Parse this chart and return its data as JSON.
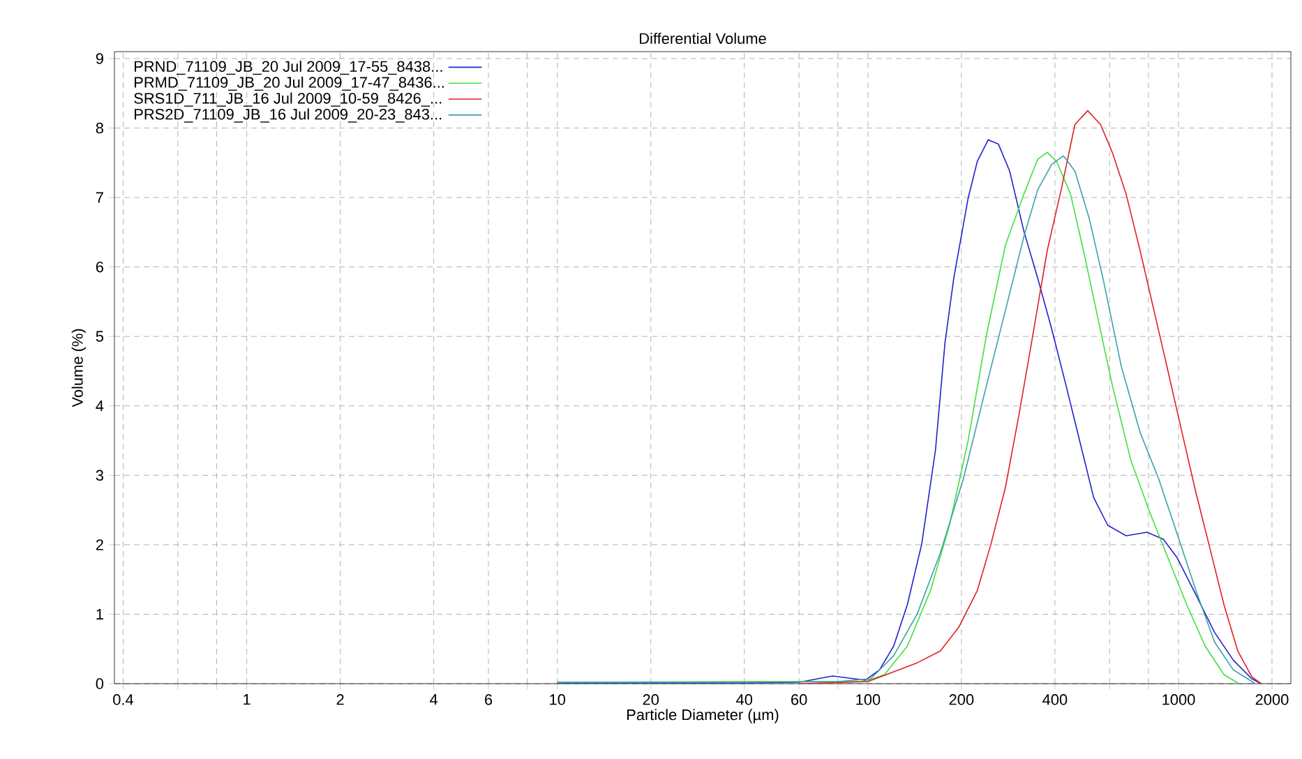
{
  "chart_data": {
    "type": "line",
    "title": "Differential Volume",
    "xlabel": "Particle Diameter (µm)",
    "ylabel": "Volume (%)",
    "log": "x",
    "grid": true,
    "legend": "top left",
    "marker": "none",
    "line_style": "solid",
    "xlim": [
      0.375,
      2300
    ],
    "ylim": [
      0,
      9.1
    ],
    "xticks": [
      0.4,
      {
        "value": 0.6,
        "label": null
      },
      {
        "value": 0.8,
        "label": null
      },
      1,
      2,
      4,
      6,
      {
        "value": 8,
        "label": null
      },
      10,
      20,
      40,
      60,
      {
        "value": 80,
        "label": null
      },
      100,
      200,
      400,
      {
        "value": 600,
        "label": null
      },
      {
        "value": 800,
        "label": null
      },
      1000,
      2000
    ],
    "yticks": [
      0,
      1,
      2,
      3,
      4,
      5,
      6,
      7,
      8,
      9
    ],
    "series": [
      {
        "name": "PRND_71109_JB_20 Jul 2009_17-55_8438...",
        "color": "#2020d0",
        "x": [
          10,
          40,
          60,
          77,
          98,
          109,
          121,
          134,
          149,
          165,
          177,
          189,
          210,
          225,
          244,
          263,
          286,
          318,
          352,
          391,
          434,
          481,
          533,
          592,
          678,
          792,
          894,
          991,
          1138,
          1306,
          1500,
          1722,
          1845
        ],
        "values": [
          0.01,
          0.01,
          0.02,
          0.11,
          0.05,
          0.2,
          0.54,
          1.14,
          2.01,
          3.36,
          4.9,
          5.84,
          6.98,
          7.52,
          7.83,
          7.77,
          7.38,
          6.51,
          5.84,
          5.1,
          4.3,
          3.49,
          2.68,
          2.28,
          2.13,
          2.18,
          2.08,
          1.81,
          1.28,
          0.74,
          0.34,
          0.07,
          0
        ]
      },
      {
        "name": "PRMD_71109_JB_20 Jul 2009_17-47_8436...",
        "color": "#40e040",
        "x": [
          10,
          40,
          80,
          98,
          113,
          134,
          159,
          183,
          210,
          241,
          277,
          318,
          352,
          378,
          405,
          449,
          498,
          552,
          612,
          702,
          806,
          925,
          1062,
          1219,
          1400,
          1552
        ],
        "values": [
          0.02,
          0.03,
          0.03,
          0.03,
          0.13,
          0.54,
          1.34,
          2.28,
          3.49,
          5.03,
          6.31,
          7.05,
          7.55,
          7.65,
          7.52,
          7.05,
          6.17,
          5.23,
          4.3,
          3.22,
          2.48,
          1.81,
          1.14,
          0.54,
          0.13,
          0.01
        ]
      },
      {
        "name": "SRS1D_711_JB_16 Jul 2009_10-59_8426_...",
        "color": "#e02020",
        "x": [
          60,
          100,
          121,
          144,
          171,
          196,
          225,
          249,
          277,
          307,
          340,
          378,
          419,
          464,
          510,
          561,
          612,
          678,
          752,
          834,
          925,
          1026,
          1138,
          1262,
          1400,
          1552,
          1722,
          1845
        ],
        "values": [
          0,
          0.03,
          0.17,
          0.3,
          0.47,
          0.81,
          1.34,
          2.01,
          2.82,
          3.89,
          5.03,
          6.24,
          7.11,
          8.05,
          8.25,
          8.05,
          7.65,
          7.05,
          6.24,
          5.37,
          4.5,
          3.62,
          2.75,
          1.95,
          1.14,
          0.47,
          0.1,
          0
        ]
      },
      {
        "name": "PRS2D_71109_JB_16 Jul 2009_20-23_843...",
        "color": "#3aa0a8",
        "x": [
          10,
          40,
          80,
          102,
          121,
          144,
          171,
          203,
          241,
          277,
          318,
          352,
          391,
          426,
          464,
          515,
          571,
          655,
          752,
          863,
          991,
          1138,
          1306,
          1500,
          1766
        ],
        "values": [
          0.02,
          0.02,
          0.03,
          0.07,
          0.4,
          1.0,
          1.88,
          2.95,
          4.3,
          5.37,
          6.44,
          7.11,
          7.48,
          7.6,
          7.38,
          6.71,
          5.84,
          4.56,
          3.62,
          2.95,
          2.15,
          1.34,
          0.6,
          0.2,
          0
        ]
      }
    ]
  }
}
